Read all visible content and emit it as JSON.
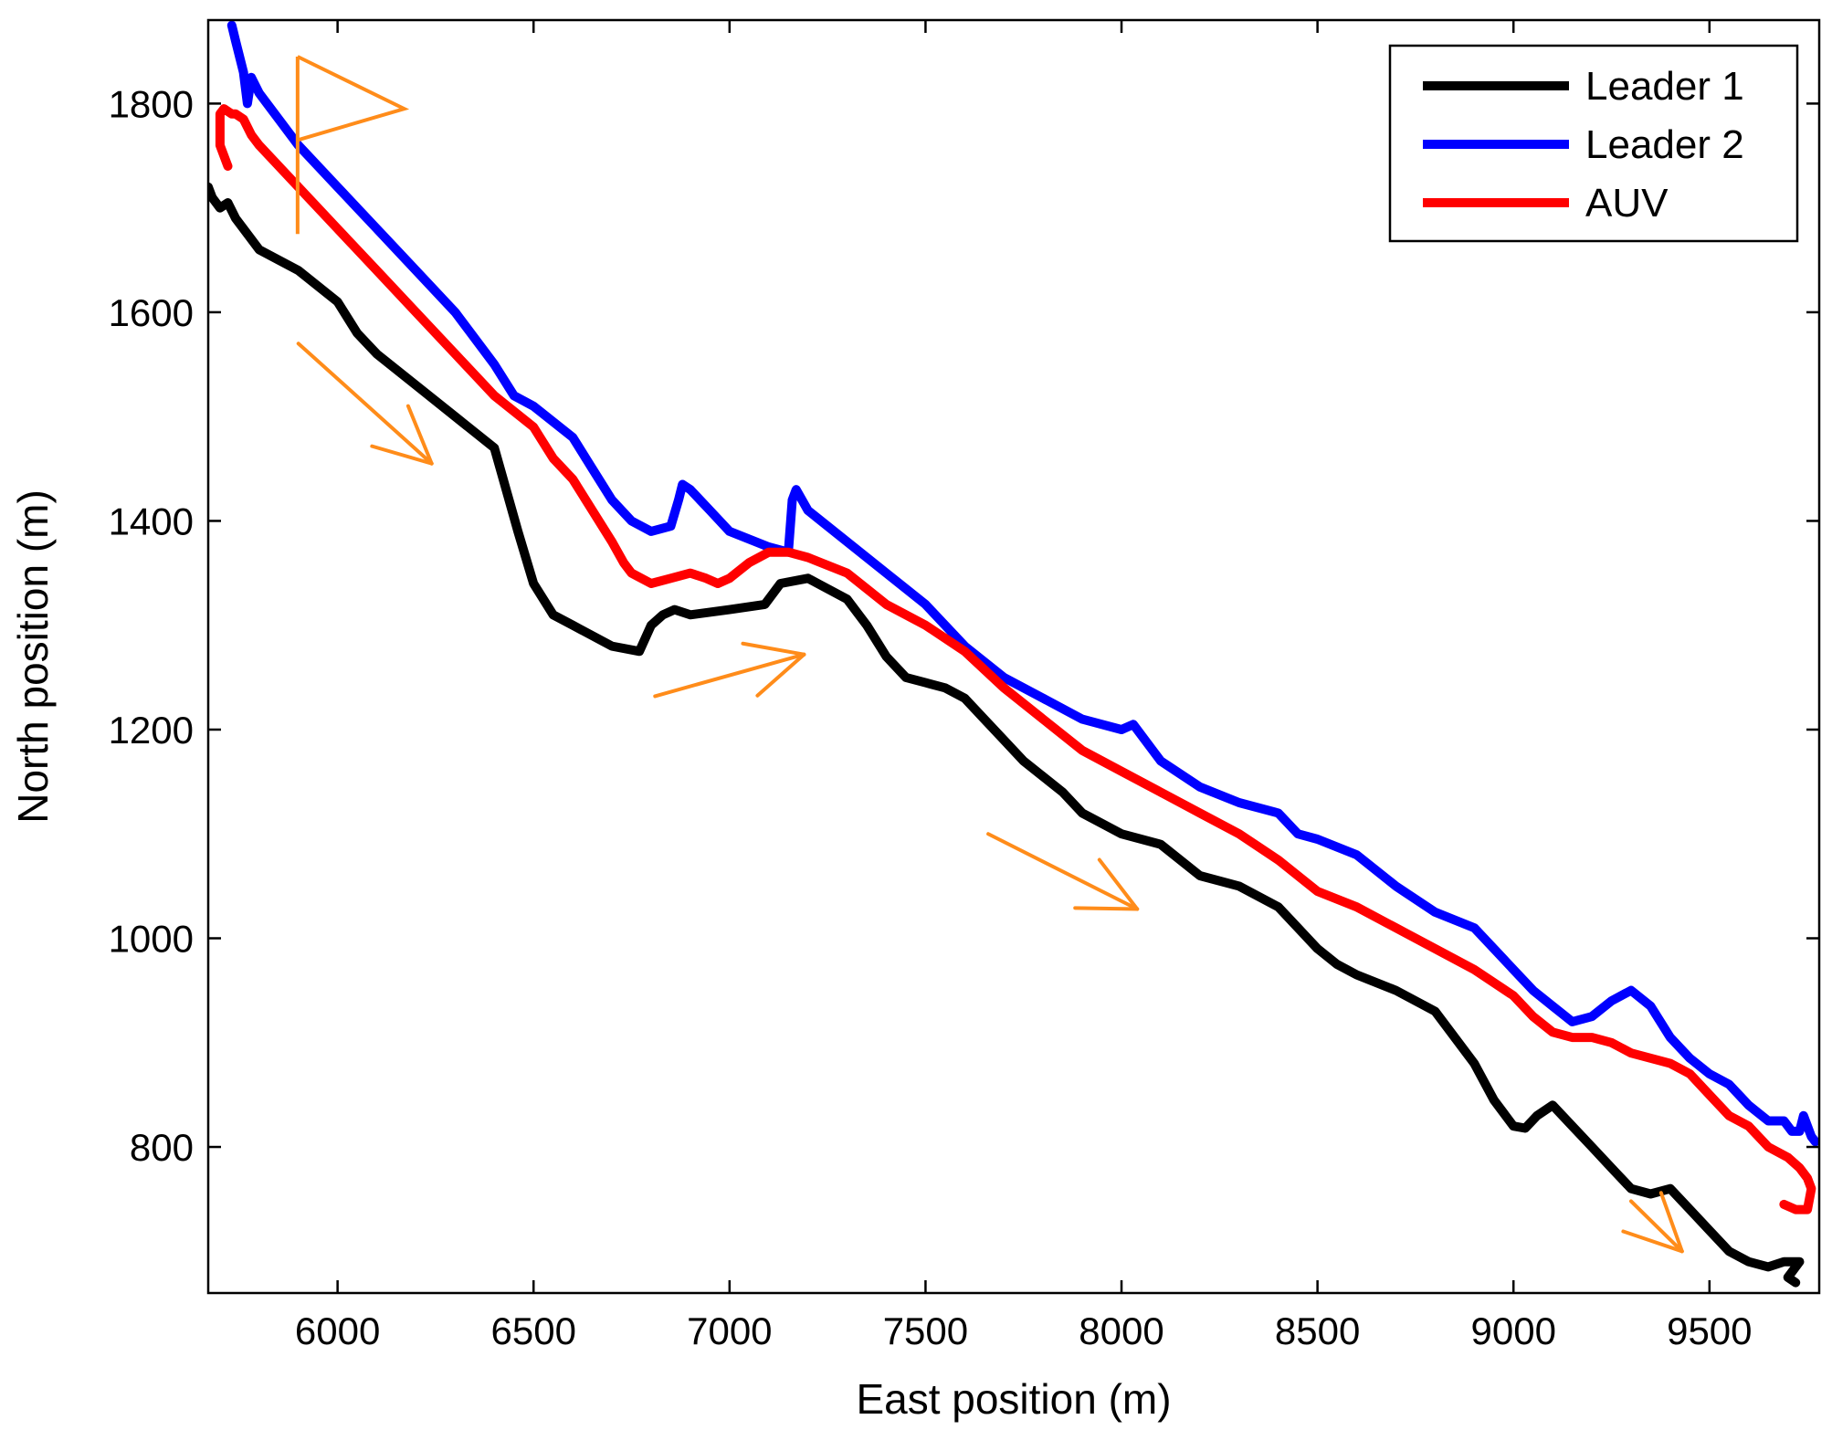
{
  "chart_data": {
    "type": "line",
    "title": "",
    "xlabel": "East position (m)",
    "ylabel": "North position (m)",
    "xlim": [
      5670,
      9780
    ],
    "ylim": [
      660,
      1880
    ],
    "xticks": [
      6000,
      6500,
      7000,
      7500,
      8000,
      8500,
      9000,
      9500
    ],
    "yticks": [
      800,
      1000,
      1200,
      1400,
      1600,
      1800
    ],
    "xtick_labels": [
      "6000",
      "6500",
      "7000",
      "7500",
      "8000",
      "8500",
      "9000",
      "9500"
    ],
    "ytick_labels": [
      "800",
      "1000",
      "1200",
      "1400",
      "1600",
      "1800"
    ],
    "grid": false,
    "legend_position": "top-right",
    "series": [
      {
        "name": "Leader 1",
        "color": "#000000",
        "x": [
          5670,
          5680,
          5700,
          5720,
          5740,
          5760,
          5800,
          5900,
          6000,
          6050,
          6100,
          6200,
          6300,
          6400,
          6430,
          6460,
          6500,
          6550,
          6600,
          6700,
          6770,
          6800,
          6830,
          6860,
          6900,
          7000,
          7090,
          7130,
          7200,
          7300,
          7350,
          7400,
          7450,
          7500,
          7550,
          7600,
          7650,
          7700,
          7750,
          7800,
          7850,
          7900,
          7950,
          8000,
          8100,
          8200,
          8300,
          8400,
          8450,
          8500,
          8550,
          8600,
          8700,
          8800,
          8900,
          8950,
          9000,
          9030,
          9060,
          9100,
          9150,
          9200,
          9250,
          9300,
          9350,
          9400,
          9450,
          9500,
          9550,
          9600,
          9650,
          9690,
          9730,
          9700,
          9720
        ],
        "y": [
          1720,
          1710,
          1700,
          1705,
          1690,
          1680,
          1660,
          1640,
          1610,
          1580,
          1560,
          1530,
          1500,
          1470,
          1430,
          1390,
          1340,
          1310,
          1300,
          1280,
          1275,
          1300,
          1310,
          1315,
          1310,
          1315,
          1320,
          1340,
          1345,
          1325,
          1300,
          1270,
          1250,
          1245,
          1240,
          1230,
          1210,
          1190,
          1170,
          1155,
          1140,
          1120,
          1110,
          1100,
          1090,
          1060,
          1050,
          1030,
          1010,
          990,
          975,
          965,
          950,
          930,
          880,
          845,
          820,
          818,
          830,
          840,
          820,
          800,
          780,
          760,
          755,
          760,
          740,
          720,
          700,
          690,
          685,
          690,
          690,
          675,
          670
        ]
      },
      {
        "name": "Leader 2",
        "color": "#0000ff",
        "x": [
          5730,
          5740,
          5760,
          5770,
          5780,
          5800,
          5900,
          6000,
          6100,
          6200,
          6300,
          6400,
          6450,
          6500,
          6600,
          6650,
          6700,
          6750,
          6800,
          6850,
          6870,
          6880,
          6900,
          6950,
          7000,
          7100,
          7150,
          7160,
          7170,
          7200,
          7300,
          7400,
          7500,
          7600,
          7700,
          7800,
          7900,
          8000,
          8030,
          8100,
          8200,
          8300,
          8400,
          8450,
          8500,
          8600,
          8700,
          8800,
          8900,
          8950,
          9000,
          9050,
          9100,
          9150,
          9200,
          9250,
          9300,
          9350,
          9400,
          9450,
          9500,
          9550,
          9600,
          9650,
          9690,
          9710,
          9730,
          9740,
          9760,
          9770
        ],
        "y": [
          1875,
          1860,
          1830,
          1800,
          1825,
          1810,
          1760,
          1720,
          1680,
          1640,
          1600,
          1550,
          1520,
          1510,
          1480,
          1450,
          1420,
          1400,
          1390,
          1395,
          1420,
          1435,
          1430,
          1410,
          1390,
          1375,
          1370,
          1420,
          1430,
          1410,
          1380,
          1350,
          1320,
          1280,
          1250,
          1230,
          1210,
          1200,
          1205,
          1170,
          1145,
          1130,
          1120,
          1100,
          1095,
          1080,
          1050,
          1025,
          1010,
          990,
          970,
          950,
          935,
          920,
          925,
          940,
          950,
          935,
          905,
          885,
          870,
          860,
          840,
          825,
          825,
          815,
          815,
          830,
          810,
          805
        ]
      },
      {
        "name": "AUV",
        "color": "#ff0000",
        "x": [
          5720,
          5700,
          5700,
          5710,
          5730,
          5740,
          5760,
          5780,
          5800,
          5900,
          6000,
          6100,
          6200,
          6300,
          6400,
          6500,
          6550,
          6600,
          6650,
          6700,
          6730,
          6750,
          6800,
          6850,
          6900,
          6940,
          6970,
          7000,
          7050,
          7100,
          7150,
          7200,
          7300,
          7400,
          7500,
          7600,
          7700,
          7800,
          7900,
          8000,
          8100,
          8200,
          8300,
          8400,
          8450,
          8500,
          8600,
          8700,
          8800,
          8900,
          9000,
          9050,
          9100,
          9150,
          9200,
          9250,
          9300,
          9400,
          9450,
          9500,
          9550,
          9600,
          9650,
          9700,
          9730,
          9750,
          9760,
          9750,
          9720,
          9690
        ],
        "y": [
          1740,
          1760,
          1790,
          1795,
          1790,
          1790,
          1785,
          1770,
          1760,
          1720,
          1680,
          1640,
          1600,
          1560,
          1520,
          1490,
          1460,
          1440,
          1410,
          1380,
          1360,
          1350,
          1340,
          1345,
          1350,
          1345,
          1340,
          1345,
          1360,
          1370,
          1370,
          1365,
          1350,
          1320,
          1300,
          1275,
          1240,
          1210,
          1180,
          1160,
          1140,
          1120,
          1100,
          1075,
          1060,
          1045,
          1030,
          1010,
          990,
          970,
          945,
          925,
          910,
          905,
          905,
          900,
          890,
          880,
          870,
          850,
          830,
          820,
          800,
          790,
          780,
          770,
          760,
          740,
          740,
          745
        ]
      }
    ],
    "arrow_color": "#ff8c1a"
  }
}
